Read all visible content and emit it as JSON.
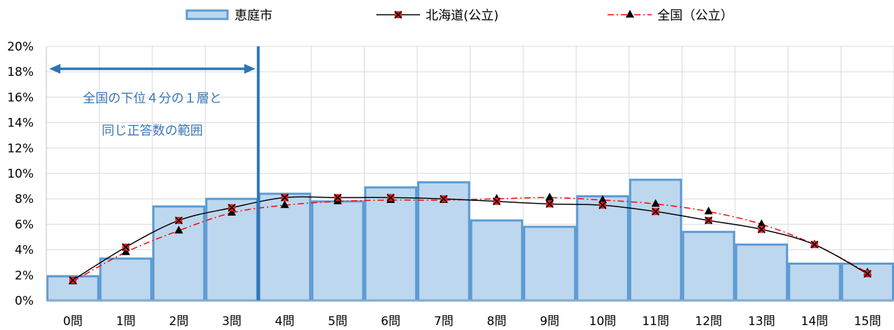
{
  "chart_data": {
    "type": "bar",
    "categories": [
      "0問",
      "1問",
      "2問",
      "3問",
      "4問",
      "5問",
      "6問",
      "7問",
      "8問",
      "9問",
      "10問",
      "11問",
      "12問",
      "13問",
      "14問",
      "15問"
    ],
    "y_ticks": [
      "0%",
      "2%",
      "4%",
      "6%",
      "8%",
      "10%",
      "12%",
      "14%",
      "16%",
      "18%",
      "20%"
    ],
    "ylim": [
      0,
      20
    ],
    "grid": true,
    "legend_position": "top",
    "series": [
      {
        "name": "恵庭市",
        "kind": "bar",
        "color": "#bdd7ee",
        "edge_color": "#5b9bd5",
        "values": [
          1.9,
          3.3,
          7.4,
          8.0,
          8.4,
          7.8,
          8.9,
          9.3,
          6.3,
          5.8,
          8.2,
          9.5,
          5.4,
          4.4,
          2.9,
          2.9
        ]
      },
      {
        "name": "北海道(公立)",
        "kind": "line",
        "color": "#000000",
        "marker_color": "#e02020",
        "values": [
          1.6,
          4.2,
          6.3,
          7.3,
          8.1,
          8.1,
          8.1,
          8.0,
          7.8,
          7.6,
          7.5,
          7.0,
          6.3,
          5.6,
          4.4,
          2.1
        ]
      },
      {
        "name": "全国（公立）",
        "kind": "line",
        "color": "#ff0000",
        "marker_color": "#000000",
        "values": [
          1.5,
          3.8,
          5.5,
          6.9,
          7.5,
          7.8,
          7.9,
          7.9,
          8.0,
          8.1,
          7.9,
          7.6,
          7.0,
          6.0,
          4.4,
          2.2
        ]
      }
    ],
    "annotation": {
      "lines": [
        "全国の下位４分の１層と",
        "同じ正答数の範囲"
      ],
      "range_start_category": 0,
      "range_end_category": 3,
      "color": "#2e75b6"
    }
  }
}
